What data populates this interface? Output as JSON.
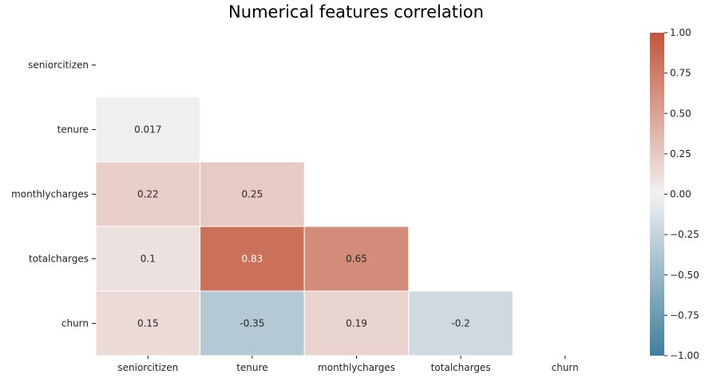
{
  "chart_data": {
    "type": "heatmap",
    "title": "Numerical features correlation",
    "variables": [
      "seniorcitizen",
      "tenure",
      "monthlycharges",
      "totalcharges",
      "churn"
    ],
    "x_labels": [
      "seniorcitizen",
      "tenure",
      "monthlycharges",
      "totalcharges",
      "churn"
    ],
    "y_labels": [
      "seniorcitizen",
      "tenure",
      "monthlycharges",
      "totalcharges",
      "churn"
    ],
    "mask": "upper-triangle-including-diagonal",
    "cells": [
      {
        "row": "tenure",
        "col": "seniorcitizen",
        "value": 0.017,
        "label": "0.017"
      },
      {
        "row": "monthlycharges",
        "col": "seniorcitizen",
        "value": 0.22,
        "label": "0.22"
      },
      {
        "row": "monthlycharges",
        "col": "tenure",
        "value": 0.25,
        "label": "0.25"
      },
      {
        "row": "totalcharges",
        "col": "seniorcitizen",
        "value": 0.1,
        "label": "0.1"
      },
      {
        "row": "totalcharges",
        "col": "tenure",
        "value": 0.83,
        "label": "0.83"
      },
      {
        "row": "totalcharges",
        "col": "monthlycharges",
        "value": 0.65,
        "label": "0.65"
      },
      {
        "row": "churn",
        "col": "seniorcitizen",
        "value": 0.15,
        "label": "0.15"
      },
      {
        "row": "churn",
        "col": "tenure",
        "value": -0.35,
        "label": "-0.35"
      },
      {
        "row": "churn",
        "col": "monthlycharges",
        "value": 0.19,
        "label": "0.19"
      },
      {
        "row": "churn",
        "col": "totalcharges",
        "value": -0.2,
        "label": "-0.2"
      }
    ],
    "colorbar": {
      "range": [
        -1.0,
        1.0
      ],
      "ticks": [
        1.0,
        0.75,
        0.5,
        0.25,
        0.0,
        -0.25,
        -0.5,
        -0.75,
        -1.0
      ],
      "tick_labels": [
        "1.00",
        "0.75",
        "0.50",
        "0.25",
        "0.00",
        "−0.25",
        "−0.50",
        "−0.75",
        "−1.00"
      ],
      "colors": {
        "negative": "#3f7f9c",
        "neutral": "#f2f1f1",
        "positive": "#c3553a"
      },
      "placement": "right"
    },
    "grid": false
  }
}
